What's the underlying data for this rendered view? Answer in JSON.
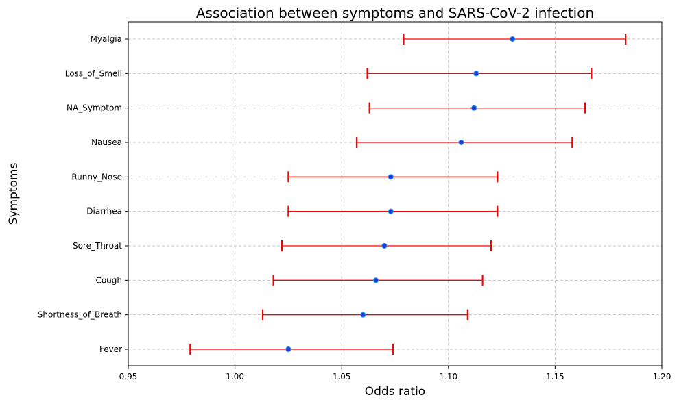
{
  "chart_data": {
    "type": "scatter",
    "title": "Association between symptoms and SARS-CoV-2 infection",
    "xlabel": "Odds ratio",
    "ylabel": "Symptoms",
    "xlim": [
      0.95,
      1.2
    ],
    "xticks": [
      "0.95",
      "1.00",
      "1.05",
      "1.10",
      "1.15",
      "1.20"
    ],
    "grid": true,
    "colors": {
      "point": "#1f3fd6",
      "error_bar": "#ff0000"
    },
    "categories": [
      "Fever",
      "Shortness_of_Breath",
      "Cough",
      "Sore_Throat",
      "Diarrhea",
      "Runny_Nose",
      "Nausea",
      "NA_Symptom",
      "Loss_of_Smell",
      "Myalgia"
    ],
    "odds_ratio": [
      1.025,
      1.06,
      1.066,
      1.07,
      1.073,
      1.073,
      1.106,
      1.112,
      1.113,
      1.13
    ],
    "ci_lower": [
      0.979,
      1.013,
      1.018,
      1.022,
      1.025,
      1.025,
      1.057,
      1.063,
      1.062,
      1.079
    ],
    "ci_upper": [
      1.074,
      1.109,
      1.116,
      1.12,
      1.123,
      1.123,
      1.158,
      1.164,
      1.167,
      1.183
    ]
  }
}
